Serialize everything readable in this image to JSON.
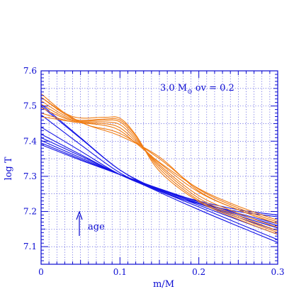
{
  "chart_data": {
    "type": "line",
    "title": "",
    "xlabel": "m/M",
    "ylabel": "log T",
    "xlim": [
      0,
      0.3
    ],
    "ylim": [
      7.05,
      7.6
    ],
    "grid": true,
    "x_ticks": [
      "0",
      "0.1",
      "0.2",
      "0.3"
    ],
    "y_ticks": [
      "7.1",
      "7.2",
      "7.3",
      "7.4",
      "7.5",
      "7.6"
    ],
    "annotation": {
      "prefix": "3.0 M",
      "sub": "⊙",
      "suffix": " ov = 0.2"
    },
    "age_label": "age",
    "colors": {
      "axes": "#0a0ad2",
      "grid": "#0a0ad2",
      "blue_series": "#1414e6",
      "orange_series": "#f07d14"
    },
    "blue_series": [
      {
        "x": [
          0,
          0.05,
          0.1,
          0.15,
          0.2,
          0.25,
          0.3
        ],
        "values": [
          7.39,
          7.346,
          7.305,
          7.265,
          7.228,
          7.195,
          7.165
        ]
      },
      {
        "x": [
          0,
          0.05,
          0.1,
          0.15,
          0.2,
          0.25,
          0.3
        ],
        "values": [
          7.395,
          7.349,
          7.305,
          7.264,
          7.227,
          7.192,
          7.16
        ]
      },
      {
        "x": [
          0,
          0.05,
          0.1,
          0.15,
          0.2,
          0.25,
          0.3
        ],
        "values": [
          7.402,
          7.353,
          7.305,
          7.262,
          7.224,
          7.188,
          7.153
        ]
      },
      {
        "x": [
          0,
          0.05,
          0.1,
          0.15,
          0.2,
          0.25,
          0.3
        ],
        "values": [
          7.41,
          7.358,
          7.305,
          7.262,
          7.222,
          7.183,
          7.145
        ]
      },
      {
        "x": [
          0,
          0.05,
          0.1,
          0.15,
          0.2,
          0.25,
          0.3
        ],
        "values": [
          7.42,
          7.362,
          7.305,
          7.26,
          7.218,
          7.176,
          7.135
        ]
      },
      {
        "x": [
          0,
          0.05,
          0.1,
          0.15,
          0.2,
          0.25,
          0.3
        ],
        "values": [
          7.44,
          7.372,
          7.305,
          7.258,
          7.213,
          7.166,
          7.12
        ]
      },
      {
        "x": [
          0,
          0.05,
          0.1,
          0.15,
          0.2,
          0.25,
          0.3
        ],
        "values": [
          7.475,
          7.39,
          7.31,
          7.255,
          7.205,
          7.158,
          7.112
        ]
      },
      {
        "x": [
          0,
          0.05,
          0.1,
          0.15,
          0.2,
          0.25,
          0.3
        ],
        "values": [
          7.505,
          7.41,
          7.318,
          7.258,
          7.222,
          7.2,
          7.185
        ]
      },
      {
        "x": [
          0,
          0.05,
          0.1,
          0.15,
          0.2,
          0.25,
          0.3
        ],
        "values": [
          7.5,
          7.408,
          7.318,
          7.262,
          7.23,
          7.205,
          7.19
        ]
      }
    ],
    "orange_series": [
      {
        "x": [
          0,
          0.04,
          0.08,
          0.1,
          0.12,
          0.15,
          0.2,
          0.25,
          0.3
        ],
        "values": [
          7.47,
          7.455,
          7.445,
          7.43,
          7.395,
          7.34,
          7.265,
          7.215,
          7.175
        ]
      },
      {
        "x": [
          0,
          0.04,
          0.08,
          0.1,
          0.12,
          0.15,
          0.2,
          0.25,
          0.3
        ],
        "values": [
          7.48,
          7.455,
          7.45,
          7.438,
          7.4,
          7.338,
          7.255,
          7.205,
          7.165
        ]
      },
      {
        "x": [
          0,
          0.04,
          0.08,
          0.1,
          0.12,
          0.15,
          0.2,
          0.25,
          0.3
        ],
        "values": [
          7.495,
          7.458,
          7.455,
          7.447,
          7.405,
          7.333,
          7.245,
          7.195,
          7.155
        ]
      },
      {
        "x": [
          0,
          0.04,
          0.08,
          0.1,
          0.12,
          0.15,
          0.2,
          0.25,
          0.3
        ],
        "values": [
          7.505,
          7.46,
          7.46,
          7.455,
          7.41,
          7.328,
          7.238,
          7.188,
          7.145
        ]
      },
      {
        "x": [
          0,
          0.04,
          0.08,
          0.1,
          0.12,
          0.15,
          0.2,
          0.25,
          0.3
        ],
        "values": [
          7.515,
          7.463,
          7.463,
          7.46,
          7.415,
          7.322,
          7.232,
          7.183,
          7.14
        ]
      },
      {
        "x": [
          0,
          0.04,
          0.08,
          0.1,
          0.12,
          0.15,
          0.2,
          0.25,
          0.3
        ],
        "values": [
          7.525,
          7.47,
          7.468,
          7.465,
          7.418,
          7.315,
          7.228,
          7.178,
          7.135
        ]
      },
      {
        "x": [
          0,
          0.03,
          0.06,
          0.1,
          0.15,
          0.2,
          0.25,
          0.3
        ],
        "values": [
          7.535,
          7.48,
          7.445,
          7.415,
          7.355,
          7.258,
          7.205,
          7.165
        ]
      },
      {
        "x": [
          0,
          0.03,
          0.06,
          0.1,
          0.15,
          0.2,
          0.25,
          0.3
        ],
        "values": [
          7.525,
          7.477,
          7.445,
          7.422,
          7.35,
          7.263,
          7.21,
          7.17
        ]
      }
    ]
  }
}
